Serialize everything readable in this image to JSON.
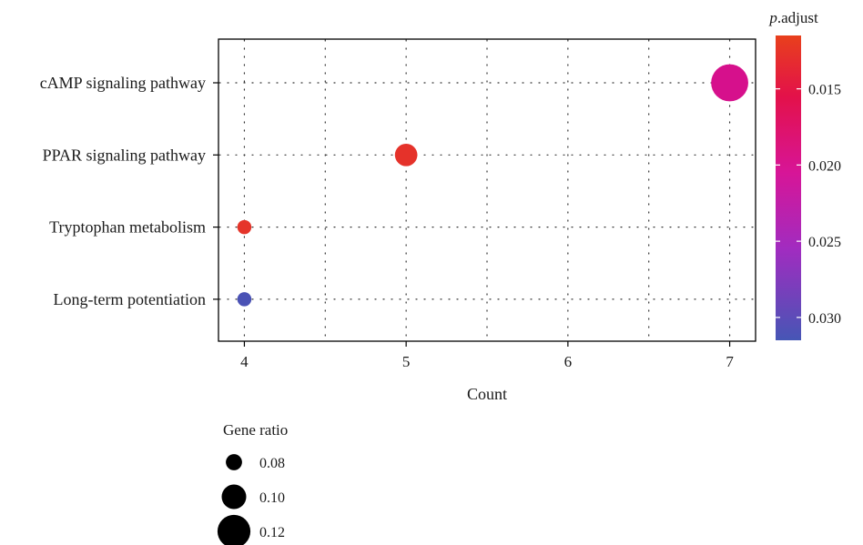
{
  "chart_data": {
    "type": "scatter",
    "title": "",
    "xlabel": "Count",
    "ylabel": "",
    "xlim": [
      3.84,
      7.16
    ],
    "x_ticks": [
      4,
      5,
      6,
      7
    ],
    "x_tick_labels": [
      "4",
      "5",
      "6",
      "7"
    ],
    "grid": true,
    "categories": [
      "cAMP signaling pathway",
      "PPAR signaling pathway",
      "Tryptophan metabolism",
      "Long-term potentiation"
    ],
    "points": [
      {
        "category": "cAMP signaling pathway",
        "count": 7,
        "gene_ratio": 0.13,
        "p_adjust": 0.0185,
        "color": "#d6108c"
      },
      {
        "category": "PPAR signaling pathway",
        "count": 5,
        "gene_ratio": 0.095,
        "p_adjust": 0.0125,
        "color": "#e5322a"
      },
      {
        "category": "Tryptophan metabolism",
        "count": 4,
        "gene_ratio": 0.075,
        "p_adjust": 0.0122,
        "color": "#e5352a"
      },
      {
        "category": "Long-term potentiation",
        "count": 4,
        "gene_ratio": 0.075,
        "p_adjust": 0.031,
        "color": "#4a52b5"
      }
    ],
    "color_legend": {
      "title_italic": "p",
      "title_rest": ".adjust",
      "range": [
        0.0115,
        0.0315
      ],
      "ticks": [
        0.015,
        0.02,
        0.025,
        0.03
      ],
      "tick_labels": [
        "0.015",
        "0.020",
        "0.025",
        "0.030"
      ],
      "gradient_stops": [
        {
          "value": 0.0115,
          "color": "#e8401c"
        },
        {
          "value": 0.0155,
          "color": "#e3114a"
        },
        {
          "value": 0.0205,
          "color": "#d71597"
        },
        {
          "value": 0.0255,
          "color": "#a12cc0"
        },
        {
          "value": 0.0315,
          "color": "#4656b5"
        }
      ],
      "placement": "right"
    },
    "size_legend": {
      "title": "Gene ratio",
      "values": [
        0.08,
        0.1,
        0.12
      ],
      "labels": [
        "0.08",
        "0.10",
        "0.12"
      ],
      "placement": "bottom-left"
    }
  }
}
